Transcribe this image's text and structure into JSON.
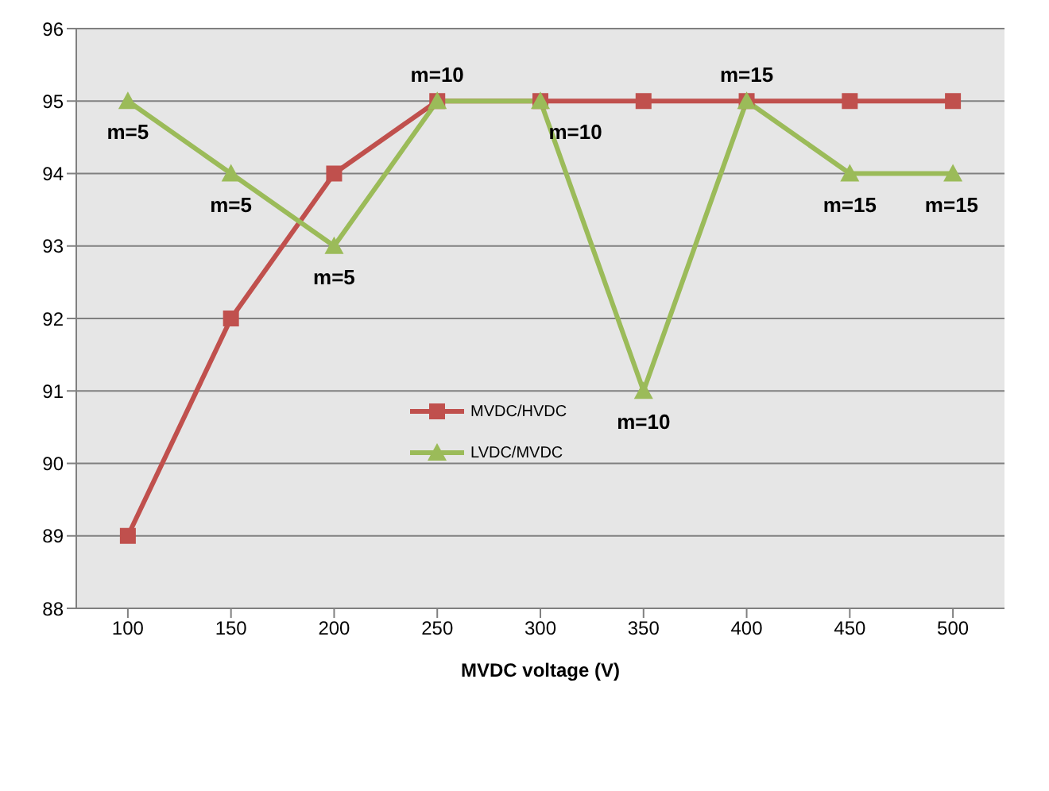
{
  "chart_data": {
    "type": "line",
    "xlabel": "MVDC voltage (V)",
    "categories": [
      "100",
      "150",
      "200",
      "250",
      "300",
      "350",
      "400",
      "450",
      "500"
    ],
    "series": [
      {
        "name": "MVDC/HVDC",
        "color": "#c0504d",
        "marker": "square",
        "values": [
          89,
          92,
          94,
          95,
          95,
          95,
          95,
          95,
          95
        ]
      },
      {
        "name": "LVDC/MVDC",
        "color": "#9bbb59",
        "marker": "triangle",
        "values": [
          95,
          94,
          93,
          95,
          95,
          91,
          95,
          94,
          94
        ]
      }
    ],
    "ylim": [
      88,
      96
    ],
    "yticks": [
      88,
      89,
      90,
      91,
      92,
      93,
      94,
      95,
      96
    ],
    "grid": "y",
    "legend": "center",
    "annotations": [
      {
        "text": "m=5",
        "x": "100",
        "y": 95
      },
      {
        "text": "m=5",
        "x": "150",
        "y": 94
      },
      {
        "text": "m=5",
        "x": "200",
        "y": 93
      },
      {
        "text": "m=10",
        "x": "250",
        "y": 95
      },
      {
        "text": "m=10",
        "x": "300",
        "y": 95
      },
      {
        "text": "m=10",
        "x": "350",
        "y": 91
      },
      {
        "text": "m=15",
        "x": "400",
        "y": 95
      },
      {
        "text": "m=15",
        "x": "450",
        "y": 94
      },
      {
        "text": "m=15",
        "x": "500",
        "y": 94
      }
    ]
  }
}
